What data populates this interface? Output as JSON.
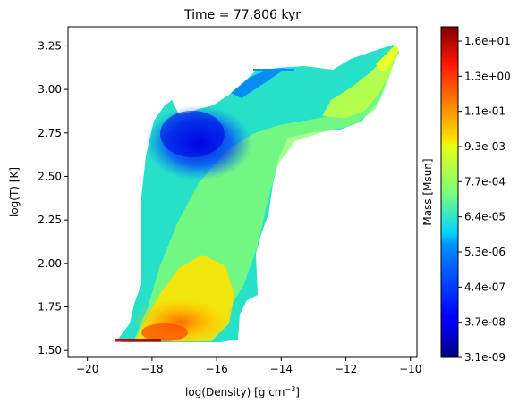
{
  "chart_data": {
    "type": "heatmap",
    "title": "Time = 77.806 kyr",
    "xlabel": {
      "main": "log(Density) [g cm",
      "sup": "−3",
      "end": "]"
    },
    "ylabel": "log(T) [K]",
    "xlim": [
      -20.6,
      -9.8
    ],
    "ylim": [
      1.46,
      3.36
    ],
    "xticks": [
      -20,
      -18,
      -16,
      -14,
      -12,
      -10
    ],
    "xtick_labels": [
      "−20",
      "−18",
      "−16",
      "−14",
      "−12",
      "−10"
    ],
    "yticks": [
      1.5,
      1.75,
      2.0,
      2.25,
      2.5,
      2.75,
      3.0,
      3.25
    ],
    "ytick_labels": [
      "1.50",
      "1.75",
      "2.00",
      "2.25",
      "2.50",
      "2.75",
      "3.00",
      "3.25"
    ],
    "grid": false,
    "colormap": "jet",
    "colorbar": {
      "label": "Mass [Msun]",
      "scale": "log",
      "tick_labels": [
        "3.1e-09",
        "3.7e-08",
        "4.4e-07",
        "5.3e-06",
        "6.4e-05",
        "7.7e-04",
        "9.3e-03",
        "1.1e-01",
        "1.3e+00",
        "1.6e+01"
      ]
    },
    "regions": [
      {
        "name": "main distribution",
        "x_range": [
          -19.0,
          -10.6
        ],
        "y_range": [
          1.55,
          3.25
        ],
        "dominant_mass_level": "7.7e-04"
      },
      {
        "name": "cold dense peak",
        "x_center": -17.3,
        "y_center": 1.65,
        "dominant_mass_level": "1.1e-01"
      },
      {
        "name": "warm low-density plume",
        "x_center": -16.6,
        "y_center": 2.75,
        "dominant_mass_level": "4.4e-07"
      },
      {
        "name": "high-density warm tail",
        "x_center": -11.5,
        "y_center": 3.05,
        "dominant_mass_level": "9.3e-03"
      }
    ]
  }
}
